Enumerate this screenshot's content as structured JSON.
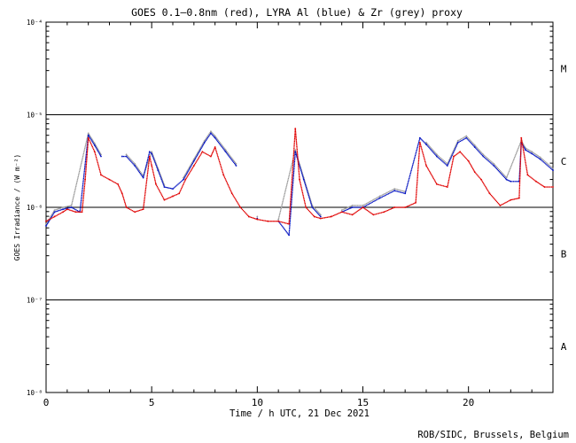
{
  "chart_data": {
    "type": "scatter",
    "title": "GOES 0.1—0.8nm (red), LYRA Al (blue) & Zr (grey) proxy",
    "xlabel": "Time / h UTC, 21 Dec 2021",
    "ylabel": "GOES Irradiance / (W m⁻²)",
    "xlim": [
      0,
      24
    ],
    "ylim_log10": [
      -8,
      -4
    ],
    "x_ticks": [
      0,
      5,
      10,
      15,
      20
    ],
    "y_ticks": [
      {
        "exp": -4,
        "label": "10⁻⁴"
      },
      {
        "exp": -5,
        "label": "10⁻⁵"
      },
      {
        "exp": -6,
        "label": "10⁻⁶"
      },
      {
        "exp": -7,
        "label": "10⁻⁷"
      },
      {
        "exp": -8,
        "label": "10⁻⁸"
      }
    ],
    "flare_class_lines_log10": [
      -5,
      -6,
      -7
    ],
    "flare_classes": [
      {
        "label": "M",
        "log_center": -4.5
      },
      {
        "label": "C",
        "log_center": -5.5
      },
      {
        "label": "B",
        "log_center": -6.5
      },
      {
        "label": "A",
        "log_center": -7.5
      }
    ],
    "series": [
      {
        "name": "GOES 0.1-0.8nm",
        "color": "#e00000",
        "x": [
          0.0,
          0.4,
          0.8,
          1.0,
          1.4,
          1.7,
          1.85,
          2.0,
          2.3,
          2.6,
          3.0,
          3.4,
          3.6,
          3.8,
          4.2,
          4.6,
          4.9,
          5.0,
          5.2,
          5.6,
          6.0,
          6.3,
          6.6,
          7.0,
          7.4,
          7.8,
          8.0,
          8.4,
          8.8,
          9.2,
          9.6,
          10.0,
          10.5,
          11.0,
          11.5,
          11.7,
          11.8,
          12.0,
          12.3,
          12.7,
          13.0,
          13.5,
          14.0,
          14.5,
          15.0,
          15.5,
          16.0,
          16.5,
          17.0,
          17.5,
          17.7,
          18.0,
          18.5,
          19.0,
          19.3,
          19.6,
          20.0,
          20.3,
          20.6,
          21.0,
          21.5,
          22.0,
          22.4,
          22.5,
          22.8,
          23.2,
          23.6,
          24.0
        ],
        "log_y": [
          -6.15,
          -6.1,
          -6.05,
          -6.02,
          -6.05,
          -6.05,
          -5.7,
          -5.25,
          -5.4,
          -5.65,
          -5.7,
          -5.75,
          -5.85,
          -6.0,
          -6.05,
          -6.02,
          -5.45,
          -5.55,
          -5.75,
          -5.92,
          -5.88,
          -5.85,
          -5.7,
          -5.55,
          -5.4,
          -5.45,
          -5.35,
          -5.65,
          -5.85,
          -6.0,
          -6.1,
          -6.13,
          -6.15,
          -6.15,
          -6.18,
          -5.5,
          -5.15,
          -5.7,
          -6.0,
          -6.1,
          -6.12,
          -6.1,
          -6.05,
          -6.08,
          -6.0,
          -6.08,
          -6.05,
          -6.0,
          -6.0,
          -5.95,
          -5.3,
          -5.55,
          -5.75,
          -5.78,
          -5.45,
          -5.4,
          -5.5,
          -5.62,
          -5.7,
          -5.85,
          -5.98,
          -5.92,
          -5.9,
          -5.25,
          -5.65,
          -5.72,
          -5.78,
          -5.78
        ]
      },
      {
        "name": "LYRA Al proxy",
        "color": "#0010c0",
        "x": [
          0.0,
          0.4,
          0.8,
          1.2,
          1.6,
          2.0,
          2.3,
          2.6,
          3.6,
          3.8,
          4.2,
          4.6,
          4.9,
          5.0,
          5.3,
          5.6,
          6.0,
          6.5,
          7.0,
          7.5,
          7.8,
          8.0,
          8.5,
          9.0,
          10.0,
          11.0,
          11.5,
          11.8,
          12.2,
          12.6,
          13.0,
          14.0,
          14.5,
          15.0,
          15.8,
          16.5,
          17.0,
          17.7,
          18.0,
          18.5,
          19.0,
          19.5,
          19.9,
          20.3,
          20.7,
          21.2,
          21.8,
          22.0,
          22.4,
          22.5,
          22.7,
          23.0,
          23.4,
          24.0
        ],
        "log_y": [
          -6.2,
          -6.05,
          -6.02,
          -6.0,
          -6.05,
          -5.22,
          -5.33,
          -5.45,
          -5.45,
          -5.45,
          -5.55,
          -5.68,
          -5.4,
          -5.42,
          -5.6,
          -5.78,
          -5.8,
          -5.7,
          -5.5,
          -5.3,
          -5.2,
          -5.25,
          -5.4,
          -5.55,
          -6.12,
          -6.15,
          -6.3,
          -5.4,
          -5.7,
          -6.0,
          -6.1,
          -6.05,
          -6.0,
          -6.0,
          -5.9,
          -5.82,
          -5.85,
          -5.25,
          -5.32,
          -5.45,
          -5.55,
          -5.3,
          -5.25,
          -5.35,
          -5.45,
          -5.55,
          -5.7,
          -5.72,
          -5.72,
          -5.3,
          -5.38,
          -5.42,
          -5.48,
          -5.6
        ]
      },
      {
        "name": "LYRA Zr proxy",
        "color": "#9a9a9a",
        "x": [
          0.0,
          0.4,
          0.8,
          1.2,
          2.0,
          2.3,
          2.6,
          3.8,
          4.2,
          4.6,
          5.0,
          5.3,
          5.6,
          6.5,
          7.0,
          7.5,
          7.8,
          8.0,
          8.5,
          9.0,
          10.0,
          11.0,
          11.8,
          12.2,
          12.6,
          13.0,
          14.0,
          14.5,
          15.0,
          15.8,
          16.5,
          17.0,
          18.0,
          18.5,
          19.0,
          19.5,
          19.9,
          20.3,
          20.7,
          21.2,
          21.8,
          22.5,
          22.7,
          23.0,
          23.4,
          24.0
        ],
        "log_y": [
          -6.18,
          -6.03,
          -6.0,
          -5.98,
          -5.2,
          -5.31,
          -5.43,
          -5.43,
          -5.53,
          -5.66,
          -5.4,
          -5.58,
          -5.76,
          -5.68,
          -5.48,
          -5.28,
          -5.18,
          -5.23,
          -5.38,
          -5.53,
          -6.1,
          -6.13,
          -5.38,
          -5.68,
          -5.98,
          -6.08,
          -6.03,
          -5.98,
          -5.98,
          -5.88,
          -5.8,
          -5.83,
          -5.3,
          -5.43,
          -5.53,
          -5.28,
          -5.23,
          -5.33,
          -5.43,
          -5.53,
          -5.68,
          -5.28,
          -5.36,
          -5.4,
          -5.46,
          -5.58
        ]
      }
    ],
    "credit": "ROB/SIDC, Brussels, Belgium"
  }
}
